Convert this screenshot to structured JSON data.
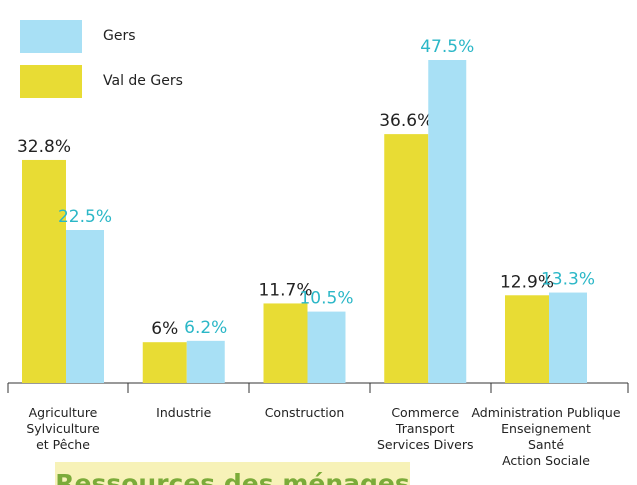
{
  "chart_data": {
    "type": "bar",
    "categories": [
      "Agriculture\nSylviculture\net Pêche",
      "Industrie",
      "Construction",
      "Commerce\nTransport\nServices Divers",
      "Administration Publique\nEnseignement\nSanté\nAction Sociale"
    ],
    "series": [
      {
        "name": "Val de Gers",
        "color": "#e8dc34",
        "label_color": "#222222",
        "values": [
          32.8,
          6,
          11.7,
          36.6,
          12.9
        ],
        "value_labels": [
          "32.8%",
          "6%",
          "11.7%",
          "36.6%",
          "12.9%"
        ]
      },
      {
        "name": "Gers",
        "color": "#a8e0f5",
        "label_color": "#2bb7c7",
        "values": [
          22.5,
          6.2,
          10.5,
          47.5,
          13.3
        ],
        "value_labels": [
          "22.5%",
          "6.2%",
          "10.5%",
          "47.5%",
          "13.3%"
        ]
      }
    ],
    "ylim": [
      0,
      50
    ]
  },
  "section_heading": "Ressources des ménages"
}
